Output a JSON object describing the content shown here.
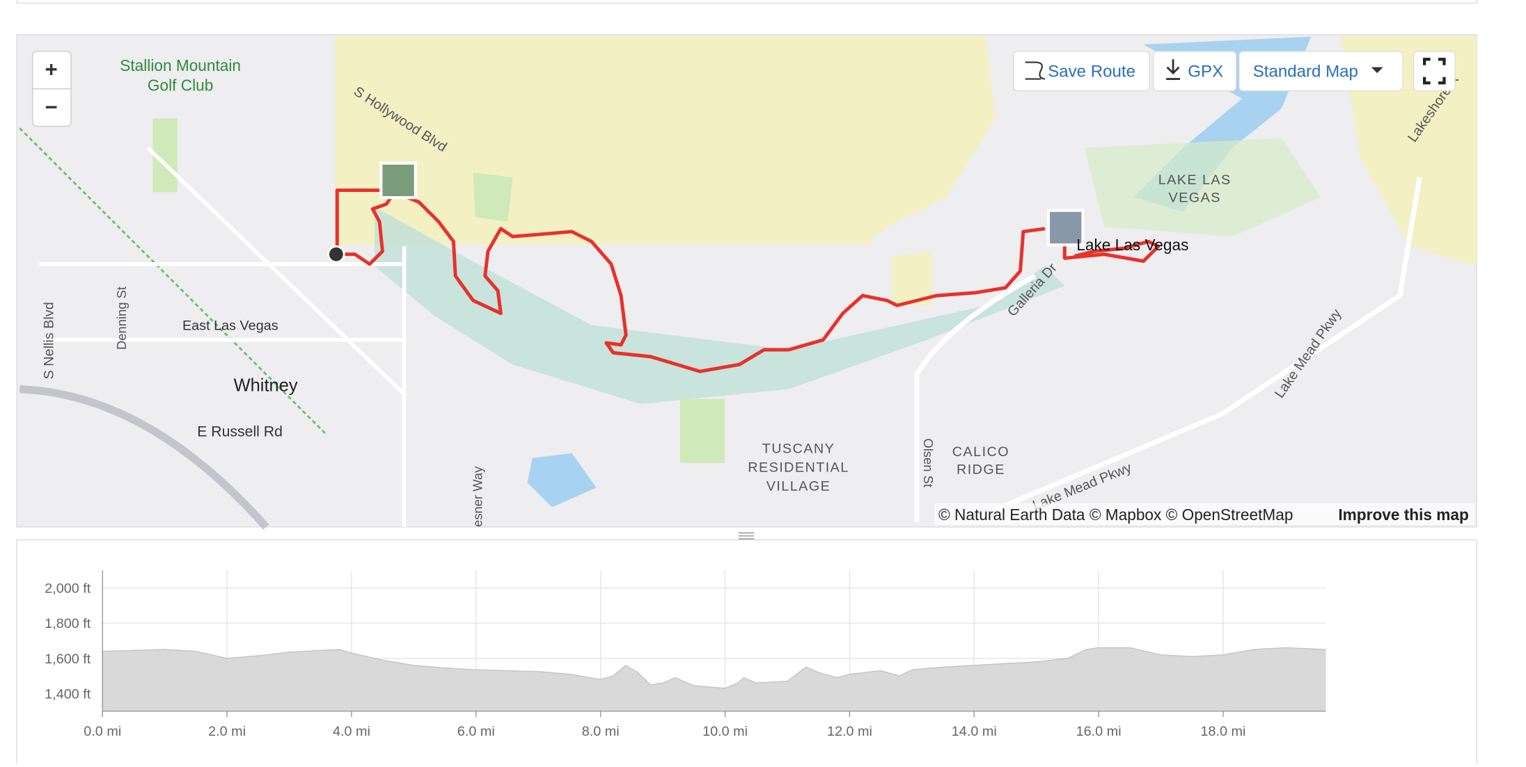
{
  "map": {
    "zoom_in": "+",
    "zoom_out": "−",
    "buttons": {
      "save_route": "Save Route",
      "gpx": "GPX",
      "map_style": "Standard Map"
    },
    "labels": {
      "golf_club_1": "Stallion Mountain",
      "golf_club_2": "Golf Club",
      "hollywood": "S Hollywood Blvd",
      "nellis": "S Nellis Blvd",
      "denning": "Denning St",
      "east_las_vegas": "East Las Vegas",
      "whitney": "Whitney",
      "russell": "E Russell Rd",
      "lake_1": "LAKE LAS",
      "lake_2": "VEGAS",
      "lake_las_vegas": "Lake Las Vegas",
      "galleria": "Galleria Dr",
      "tuscany_1": "TUSCANY",
      "tuscany_2": "RESIDENTIAL",
      "tuscany_3": "VILLAGE",
      "olsen": "Olsen St",
      "calico_1": "CALICO",
      "calico_2": "RIDGE",
      "lake_mead_1": "Lake Mead Pkwy",
      "lake_mead_2": "Lake Mead Pkwy",
      "lakeshore": "Lakeshore R",
      "wesner": "esner Way"
    },
    "attribution": {
      "text": "© Natural Earth Data © Mapbox © OpenStreetMap",
      "link": "Improve this map"
    }
  },
  "chart_data": {
    "type": "area",
    "color": "#d9d9d9",
    "x": [
      0,
      0.5,
      1.0,
      1.5,
      2.0,
      2.5,
      3.0,
      3.5,
      3.8,
      4.0,
      4.5,
      5.0,
      5.5,
      6.0,
      6.5,
      7.0,
      7.5,
      8.0,
      8.2,
      8.4,
      8.6,
      8.8,
      9.0,
      9.2,
      9.5,
      10.0,
      10.2,
      10.3,
      10.5,
      11.0,
      11.3,
      11.5,
      11.8,
      12.0,
      12.5,
      12.8,
      13.0,
      13.5,
      14.0,
      14.5,
      15.0,
      15.5,
      15.8,
      16.0,
      16.5,
      17.0,
      17.5,
      18.0,
      18.5,
      19.0,
      19.65
    ],
    "values": [
      1640,
      1645,
      1650,
      1640,
      1600,
      1615,
      1635,
      1645,
      1650,
      1630,
      1590,
      1560,
      1545,
      1535,
      1530,
      1525,
      1510,
      1480,
      1500,
      1560,
      1520,
      1450,
      1460,
      1490,
      1445,
      1430,
      1460,
      1490,
      1460,
      1470,
      1550,
      1520,
      1490,
      1510,
      1530,
      1500,
      1535,
      1550,
      1560,
      1570,
      1580,
      1600,
      1650,
      1660,
      1660,
      1620,
      1610,
      1620,
      1650,
      1660,
      1650
    ],
    "xlim": [
      0,
      19.65
    ],
    "ylim": [
      1300,
      2100
    ],
    "xticks": [
      {
        "value": 0,
        "label": "0.0 mi"
      },
      {
        "value": 2,
        "label": "2.0 mi"
      },
      {
        "value": 4,
        "label": "4.0 mi"
      },
      {
        "value": 6,
        "label": "6.0 mi"
      },
      {
        "value": 8,
        "label": "8.0 mi"
      },
      {
        "value": 10,
        "label": "10.0 mi"
      },
      {
        "value": 12,
        "label": "12.0 mi"
      },
      {
        "value": 14,
        "label": "14.0 mi"
      },
      {
        "value": 16,
        "label": "16.0 mi"
      },
      {
        "value": 18,
        "label": "18.0 mi"
      }
    ],
    "yticks": [
      {
        "value": 1400,
        "label": "1,400 ft"
      },
      {
        "value": 1600,
        "label": "1,600 ft"
      },
      {
        "value": 1800,
        "label": "1,800 ft"
      },
      {
        "value": 2000,
        "label": "2,000 ft"
      }
    ],
    "grid": true
  }
}
